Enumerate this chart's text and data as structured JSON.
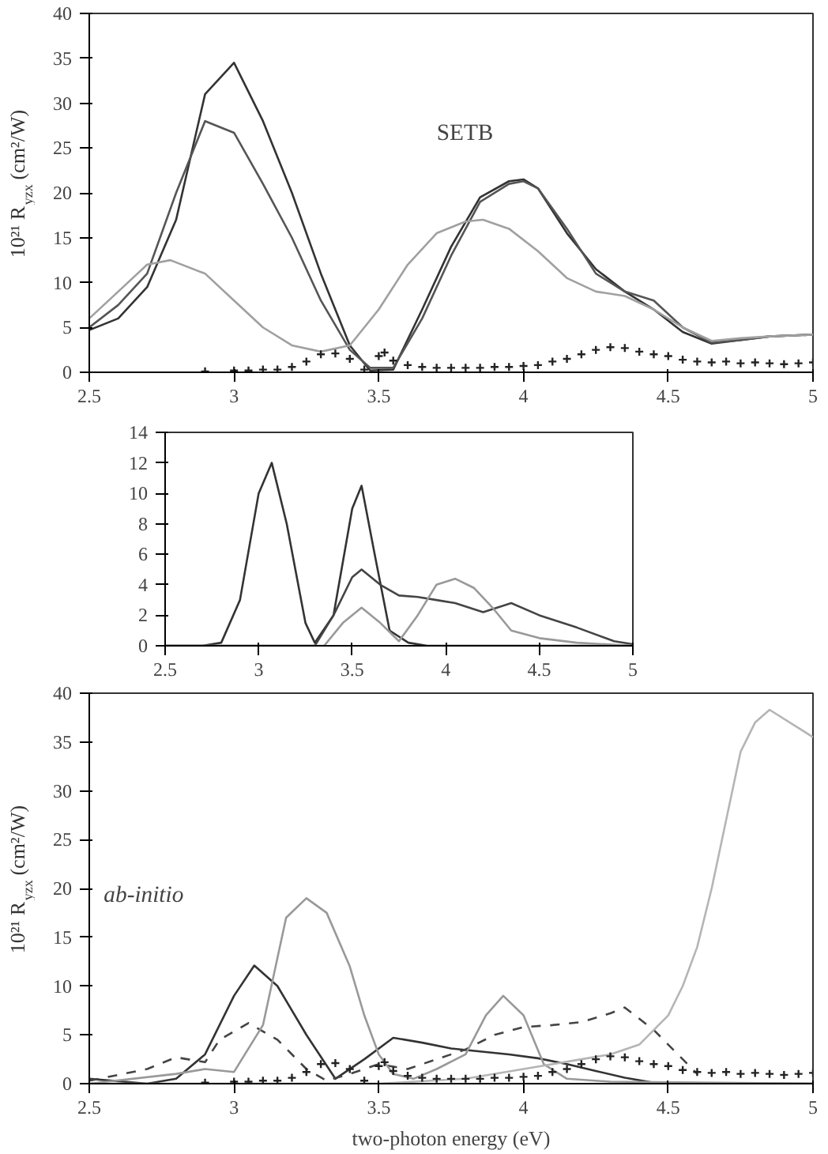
{
  "chart_data": [
    {
      "type": "line",
      "ylabel": "10²¹ R$_{yzx}$ (cm²/W)",
      "annotations": [
        "SETB"
      ],
      "xlim": [
        2.5,
        5
      ],
      "ylim": [
        0,
        40
      ],
      "xticks": [
        2.5,
        3,
        3.5,
        4,
        4.5,
        5
      ],
      "yticks": [
        0,
        5,
        10,
        15,
        20,
        25,
        30,
        35,
        40
      ],
      "grid": false,
      "series": [
        {
          "color": "#333333",
          "line_style": "solid",
          "x": [
            2.5,
            2.6,
            2.7,
            2.8,
            2.9,
            3.0,
            3.1,
            3.2,
            3.3,
            3.4,
            3.47,
            3.55,
            3.65,
            3.75,
            3.85,
            3.95,
            4.0,
            4.05,
            4.15,
            4.25,
            4.35,
            4.45,
            4.55,
            4.65,
            4.75,
            4.85,
            5.0
          ],
          "values": [
            4.7,
            6,
            9.5,
            17,
            31,
            34.5,
            28,
            20,
            11,
            3,
            0.2,
            0.3,
            7,
            14,
            19.5,
            21.3,
            21.5,
            20.5,
            15.5,
            11.5,
            9,
            7,
            4.5,
            3.2,
            3.6,
            4,
            4.2
          ]
        },
        {
          "color": "#555555",
          "line_style": "solid",
          "x": [
            2.5,
            2.6,
            2.7,
            2.8,
            2.9,
            3.0,
            3.1,
            3.2,
            3.3,
            3.4,
            3.47,
            3.55,
            3.65,
            3.75,
            3.85,
            3.95,
            4.0,
            4.05,
            4.15,
            4.25,
            4.35,
            4.45,
            4.55,
            4.65,
            4.75,
            4.85,
            5.0
          ],
          "values": [
            5,
            7.5,
            11,
            20,
            28,
            26.7,
            21,
            15,
            8,
            2.5,
            0.5,
            0.5,
            6,
            13,
            19,
            21,
            21.3,
            20.5,
            16,
            11,
            9,
            8,
            5,
            3.3,
            3.6,
            4,
            4.2
          ]
        },
        {
          "color": "#a0a0a0",
          "line_style": "solid",
          "x": [
            2.5,
            2.6,
            2.7,
            2.78,
            2.9,
            3.0,
            3.1,
            3.2,
            3.3,
            3.4,
            3.5,
            3.6,
            3.7,
            3.8,
            3.86,
            3.95,
            4.05,
            4.15,
            4.25,
            4.35,
            4.45,
            4.55,
            4.65,
            4.75,
            4.85,
            5.0
          ],
          "values": [
            6,
            9,
            12,
            12.5,
            11,
            8,
            5,
            3,
            2.3,
            3,
            7,
            12,
            15.5,
            16.8,
            17,
            16,
            13.5,
            10.5,
            9,
            8.5,
            7,
            5,
            3.5,
            3.8,
            4,
            4.2
          ]
        },
        {
          "type": "scatter",
          "marker": "cross",
          "color": "#222222",
          "x": [
            2.9,
            3.0,
            3.05,
            3.1,
            3.15,
            3.2,
            3.25,
            3.3,
            3.35,
            3.4,
            3.45,
            3.5,
            3.52,
            3.55,
            3.6,
            3.65,
            3.7,
            3.75,
            3.8,
            3.85,
            3.9,
            3.95,
            4.0,
            4.05,
            4.1,
            4.15,
            4.2,
            4.25,
            4.3,
            4.35,
            4.4,
            4.45,
            4.5,
            4.55,
            4.6,
            4.65,
            4.7,
            4.75,
            4.8,
            4.85,
            4.9,
            4.95,
            5.0
          ],
          "values": [
            0.1,
            0.2,
            0.2,
            0.3,
            0.3,
            0.6,
            1.2,
            2,
            2.1,
            1.5,
            0.3,
            1.8,
            2.2,
            1.3,
            0.8,
            0.6,
            0.5,
            0.5,
            0.5,
            0.5,
            0.6,
            0.6,
            0.7,
            0.8,
            1.2,
            1.5,
            2,
            2.5,
            2.8,
            2.7,
            2.3,
            2,
            1.8,
            1.4,
            1.2,
            1.1,
            1.2,
            1.0,
            1.1,
            1.0,
            0.9,
            1.0,
            1.1
          ]
        }
      ]
    },
    {
      "type": "line",
      "xlim": [
        2.5,
        5
      ],
      "ylim": [
        0,
        14
      ],
      "xticks": [
        2.5,
        3,
        3.5,
        4,
        4.5,
        5
      ],
      "yticks": [
        0,
        2,
        4,
        6,
        8,
        10,
        12,
        14
      ],
      "grid": false,
      "series": [
        {
          "color": "#333333",
          "line_style": "solid",
          "x": [
            2.5,
            2.7,
            2.8,
            2.9,
            3.0,
            3.07,
            3.15,
            3.25,
            3.3,
            3.4,
            3.5,
            3.55,
            3.62,
            3.7,
            3.8,
            3.9,
            5.0
          ],
          "values": [
            0,
            0,
            0.2,
            3,
            10,
            12,
            8,
            1.5,
            0.2,
            2,
            9,
            10.5,
            6,
            1,
            0.2,
            0,
            0
          ]
        },
        {
          "color": "#444444",
          "line_style": "solid",
          "x": [
            2.5,
            3.3,
            3.4,
            3.5,
            3.55,
            3.65,
            3.75,
            3.85,
            3.95,
            4.05,
            4.2,
            4.35,
            4.5,
            4.7,
            4.9,
            5.0
          ],
          "values": [
            0,
            0,
            2,
            4.5,
            5,
            4,
            3.3,
            3.2,
            3.0,
            2.8,
            2.2,
            2.8,
            2.0,
            1.2,
            0.3,
            0.1
          ]
        },
        {
          "color": "#999999",
          "line_style": "solid",
          "x": [
            2.5,
            3.35,
            3.45,
            3.55,
            3.65,
            3.75,
            3.85,
            3.95,
            4.05,
            4.15,
            4.25,
            4.35,
            4.5,
            4.7,
            5.0
          ],
          "values": [
            0,
            0,
            1.5,
            2.5,
            1.5,
            0.3,
            2,
            4,
            4.4,
            3.8,
            2.5,
            1,
            0.5,
            0.2,
            0
          ]
        }
      ]
    },
    {
      "type": "line",
      "xlabel": "two-photon energy (eV)",
      "ylabel": "10²¹ R$_{yzx}$ (cm²/W)",
      "annotations": [
        "ab-initio"
      ],
      "xlim": [
        2.5,
        5
      ],
      "ylim": [
        0,
        40
      ],
      "xticks": [
        2.5,
        3,
        3.5,
        4,
        4.5,
        5
      ],
      "yticks": [
        0,
        5,
        10,
        15,
        20,
        25,
        30,
        35,
        40
      ],
      "grid": false,
      "series": [
        {
          "color": "#333333",
          "line_style": "solid",
          "x": [
            2.5,
            2.7,
            2.8,
            2.9,
            3.0,
            3.07,
            3.15,
            3.25,
            3.35,
            3.45,
            3.55,
            3.65,
            3.75,
            3.85,
            3.95,
            4.05,
            4.15,
            4.25,
            4.35,
            4.45,
            4.6,
            5.0
          ],
          "values": [
            0.5,
            0,
            0.5,
            3,
            9,
            12.1,
            10,
            5,
            0.5,
            2.5,
            4.7,
            4.2,
            3.6,
            3.3,
            3.0,
            2.6,
            2.0,
            1.3,
            0.6,
            0.1,
            0,
            0
          ]
        },
        {
          "color": "#444444",
          "line_style": "dashed",
          "x": [
            2.5,
            2.7,
            2.8,
            2.9,
            2.95,
            3.05,
            3.15,
            3.25,
            3.32,
            3.4,
            3.5,
            3.6,
            3.7,
            3.8,
            3.9,
            4.0,
            4.1,
            4.2,
            4.3,
            4.35,
            4.45,
            4.55,
            4.6
          ],
          "values": [
            0.3,
            1.5,
            2.7,
            2.2,
            4.5,
            6.2,
            4.5,
            1.5,
            0.3,
            1,
            2,
            1.5,
            2.5,
            3.5,
            5,
            5.8,
            6,
            6.3,
            7.2,
            7.8,
            5.5,
            2.5,
            1
          ]
        },
        {
          "color": "#999999",
          "line_style": "solid",
          "x": [
            2.5,
            2.8,
            2.9,
            3.0,
            3.1,
            3.18,
            3.25,
            3.32,
            3.4,
            3.45,
            3.5,
            3.55,
            3.62,
            3.7,
            3.8,
            3.87,
            3.93,
            4.0,
            4.07,
            4.15,
            4.3,
            5.0
          ],
          "values": [
            0,
            1,
            1.5,
            1.2,
            6,
            17,
            19,
            17.5,
            12,
            7,
            3,
            1,
            0.5,
            1.5,
            3,
            7,
            9,
            7,
            2,
            0.5,
            0.2,
            0
          ]
        },
        {
          "color": "#b5b5b5",
          "line_style": "solid",
          "x": [
            2.5,
            3.5,
            3.8,
            4.0,
            4.2,
            4.3,
            4.4,
            4.5,
            4.55,
            4.6,
            4.65,
            4.7,
            4.75,
            4.8,
            4.85,
            4.92,
            5.0
          ],
          "values": [
            0,
            0,
            0.5,
            1.5,
            2.5,
            3,
            4,
            7,
            10,
            14,
            20,
            27,
            34,
            37,
            38.3,
            37,
            35.5
          ]
        },
        {
          "type": "scatter",
          "marker": "cross",
          "color": "#222222",
          "x": [
            2.9,
            3.0,
            3.05,
            3.1,
            3.15,
            3.2,
            3.25,
            3.3,
            3.35,
            3.4,
            3.45,
            3.5,
            3.52,
            3.55,
            3.6,
            3.65,
            3.7,
            3.75,
            3.8,
            3.85,
            3.9,
            3.95,
            4.0,
            4.05,
            4.1,
            4.15,
            4.2,
            4.25,
            4.3,
            4.35,
            4.4,
            4.45,
            4.5,
            4.55,
            4.6,
            4.65,
            4.7,
            4.75,
            4.8,
            4.85,
            4.9,
            4.95,
            5.0
          ],
          "values": [
            0.1,
            0.2,
            0.2,
            0.3,
            0.3,
            0.6,
            1.2,
            2,
            2.1,
            1.5,
            0.3,
            1.8,
            2.2,
            1.3,
            0.8,
            0.6,
            0.5,
            0.5,
            0.5,
            0.5,
            0.6,
            0.6,
            0.7,
            0.8,
            1.2,
            1.5,
            2,
            2.5,
            2.8,
            2.7,
            2.3,
            2,
            1.8,
            1.4,
            1.2,
            1.1,
            1.2,
            1.0,
            1.1,
            1.0,
            0.9,
            1.0,
            1.1
          ]
        }
      ]
    }
  ]
}
